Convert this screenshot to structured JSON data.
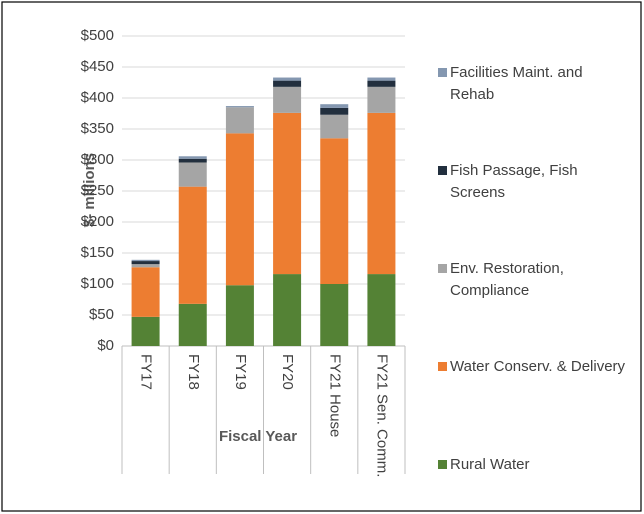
{
  "chart_data": {
    "type": "stacked_bar",
    "x_label": "Fiscal Year",
    "y_label": "$- millions",
    "categories": [
      "FY17",
      "FY18",
      "FY19",
      "FY20",
      "FY21 House",
      "FY21 Sen. Comm."
    ],
    "series": [
      {
        "name": "Rural Water",
        "color": "#548235",
        "values": [
          47,
          68,
          98,
          116,
          100,
          116
        ]
      },
      {
        "name": "Water Conserv. & Delivery",
        "color": "#ed7d31",
        "values": [
          80,
          189,
          245,
          260,
          235,
          260
        ]
      },
      {
        "name": "Env. Restoration, Compliance",
        "color": "#a5a5a5",
        "values": [
          5,
          39,
          42,
          42,
          38,
          42
        ]
      },
      {
        "name": "Fish Passage, Fish Screens",
        "color": "#222f3e",
        "values": [
          5,
          6,
          0,
          10,
          11,
          10
        ]
      },
      {
        "name": "Facilities Maint. and Rehab",
        "color": "#8497b0",
        "values": [
          2,
          4,
          2,
          5,
          6,
          5
        ]
      }
    ],
    "ylim": [
      0,
      500
    ],
    "yticks": [
      {
        "value": 0,
        "label": "$0"
      },
      {
        "value": 50,
        "label": "$50"
      },
      {
        "value": 100,
        "label": "$100"
      },
      {
        "value": 150,
        "label": "$150"
      },
      {
        "value": 200,
        "label": "$200"
      },
      {
        "value": 250,
        "label": "$250"
      },
      {
        "value": 300,
        "label": "$300"
      },
      {
        "value": 350,
        "label": "$350"
      },
      {
        "value": 400,
        "label": "$400"
      },
      {
        "value": 450,
        "label": "$450"
      },
      {
        "value": 500,
        "label": "$500"
      }
    ],
    "grid": true,
    "legend": "right"
  }
}
